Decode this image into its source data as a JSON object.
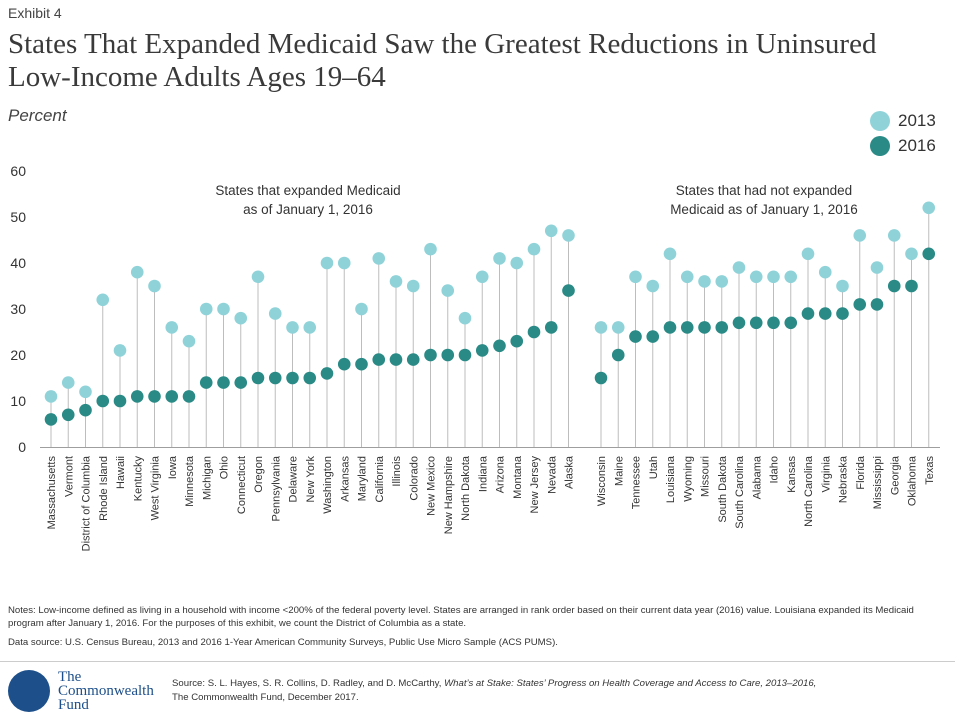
{
  "exhibit": "Exhibit 4",
  "title": "States That Expanded Medicaid Saw the Greatest Reductions in Uninsured Low-Income Adults Ages 19–64",
  "unit_label": "Percent",
  "legend": [
    {
      "label": "2013",
      "color": "#8fd3d9"
    },
    {
      "label": "2016",
      "color": "#2a8a86"
    }
  ],
  "colors": {
    "y2013": "#8fd3d9",
    "y2016": "#2a8a86",
    "stem": "#bdbdbd",
    "axis": "#9e9e9e"
  },
  "chart_data": {
    "type": "scatter",
    "ylim": [
      0,
      60
    ],
    "yticks": [
      0,
      10,
      20,
      30,
      40,
      50,
      60
    ],
    "groups": [
      {
        "label_line1": "States that expanded Medicaid",
        "label_line2": "as of January 1, 2016",
        "states": [
          {
            "name": "Massachusetts",
            "v2013": 11,
            "v2016": 6
          },
          {
            "name": "Vermont",
            "v2013": 14,
            "v2016": 7
          },
          {
            "name": "District of Columbia",
            "v2013": 12,
            "v2016": 8
          },
          {
            "name": "Rhode Island",
            "v2013": 32,
            "v2016": 10
          },
          {
            "name": "Hawaii",
            "v2013": 21,
            "v2016": 10
          },
          {
            "name": "Kentucky",
            "v2013": 38,
            "v2016": 11
          },
          {
            "name": "West Virginia",
            "v2013": 35,
            "v2016": 11
          },
          {
            "name": "Iowa",
            "v2013": 26,
            "v2016": 11
          },
          {
            "name": "Minnesota",
            "v2013": 23,
            "v2016": 11
          },
          {
            "name": "Michigan",
            "v2013": 30,
            "v2016": 14
          },
          {
            "name": "Ohio",
            "v2013": 30,
            "v2016": 14
          },
          {
            "name": "Connecticut",
            "v2013": 28,
            "v2016": 14
          },
          {
            "name": "Oregon",
            "v2013": 37,
            "v2016": 15
          },
          {
            "name": "Pennsylvania",
            "v2013": 29,
            "v2016": 15
          },
          {
            "name": "Delaware",
            "v2013": 26,
            "v2016": 15
          },
          {
            "name": "New York",
            "v2013": 26,
            "v2016": 15
          },
          {
            "name": "Washington",
            "v2013": 40,
            "v2016": 16
          },
          {
            "name": "Arkansas",
            "v2013": 40,
            "v2016": 18
          },
          {
            "name": "Maryland",
            "v2013": 30,
            "v2016": 18
          },
          {
            "name": "California",
            "v2013": 41,
            "v2016": 19
          },
          {
            "name": "Illinois",
            "v2013": 36,
            "v2016": 19
          },
          {
            "name": "Colorado",
            "v2013": 35,
            "v2016": 19
          },
          {
            "name": "New Mexico",
            "v2013": 43,
            "v2016": 20
          },
          {
            "name": "New Hampshire",
            "v2013": 34,
            "v2016": 20
          },
          {
            "name": "North Dakota",
            "v2013": 28,
            "v2016": 20
          },
          {
            "name": "Indiana",
            "v2013": 37,
            "v2016": 21
          },
          {
            "name": "Arizona",
            "v2013": 41,
            "v2016": 22
          },
          {
            "name": "Montana",
            "v2013": 40,
            "v2016": 23
          },
          {
            "name": "New Jersey",
            "v2013": 43,
            "v2016": 25
          },
          {
            "name": "Nevada",
            "v2013": 47,
            "v2016": 26
          },
          {
            "name": "Alaska",
            "v2013": 46,
            "v2016": 34
          }
        ]
      },
      {
        "label_line1": "States that had not expanded",
        "label_line2": "Medicaid as of January 1, 2016",
        "states": [
          {
            "name": "Wisconsin",
            "v2013": 26,
            "v2016": 15
          },
          {
            "name": "Maine",
            "v2013": 26,
            "v2016": 20
          },
          {
            "name": "Tennessee",
            "v2013": 37,
            "v2016": 24
          },
          {
            "name": "Utah",
            "v2013": 35,
            "v2016": 24
          },
          {
            "name": "Louisiana",
            "v2013": 42,
            "v2016": 26
          },
          {
            "name": "Wyoming",
            "v2013": 37,
            "v2016": 26
          },
          {
            "name": "Missouri",
            "v2013": 36,
            "v2016": 26
          },
          {
            "name": "South Dakota",
            "v2013": 36,
            "v2016": 26
          },
          {
            "name": "South Carolina",
            "v2013": 39,
            "v2016": 27
          },
          {
            "name": "Alabama",
            "v2013": 37,
            "v2016": 27
          },
          {
            "name": "Idaho",
            "v2013": 37,
            "v2016": 27
          },
          {
            "name": "Kansas",
            "v2013": 37,
            "v2016": 27
          },
          {
            "name": "North Carolina",
            "v2013": 42,
            "v2016": 29
          },
          {
            "name": "Virginia",
            "v2013": 38,
            "v2016": 29
          },
          {
            "name": "Nebraska",
            "v2013": 35,
            "v2016": 29
          },
          {
            "name": "Florida",
            "v2013": 46,
            "v2016": 31
          },
          {
            "name": "Mississippi",
            "v2013": 39,
            "v2016": 31
          },
          {
            "name": "Georgia",
            "v2013": 46,
            "v2016": 35
          },
          {
            "name": "Oklahoma",
            "v2013": 42,
            "v2016": 35
          },
          {
            "name": "Texas",
            "v2013": 52,
            "v2016": 42
          }
        ]
      }
    ]
  },
  "notes": "Notes: Low-income defined as living in a household with income <200% of the federal poverty level. States are arranged in rank order based on their current data year (2016) value. Louisiana expanded its Medicaid program after January 1, 2016. For the purposes of this exhibit, we count the District of Columbia as a state.",
  "data_source": "Data source: U.S. Census Bureau, 2013  and 2016  1-Year American Community Surveys, Public Use Micro Sample (ACS PUMS).",
  "logo": {
    "line1": "The",
    "line2": "Commonwealth",
    "line3": "Fund"
  },
  "citation": {
    "prefix": "Source: S. L. Hayes, S. R. Collins, D. Radley, and D. McCarthy, ",
    "italic": "What’s at Stake: States’ Progress on Health Coverage and Access to Care, 2013–2016,",
    "suffix": "The Commonwealth Fund, December 2017."
  }
}
